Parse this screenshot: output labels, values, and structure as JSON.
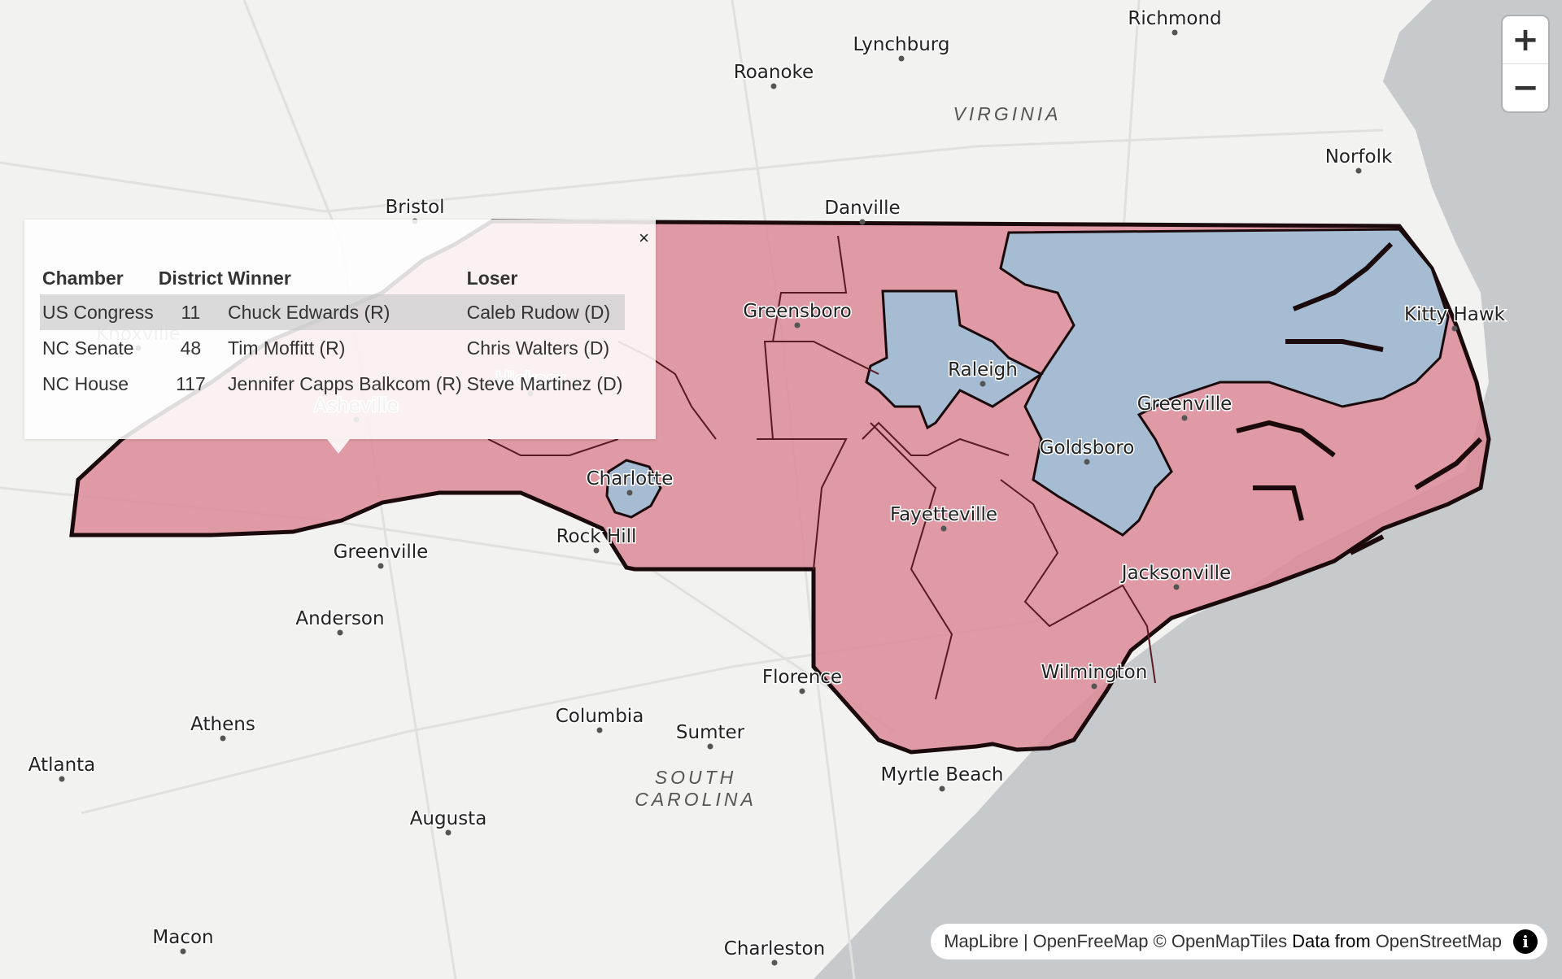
{
  "map": {
    "regions": [
      {
        "name": "VIRGINIA"
      },
      {
        "name": "SOUTH CAROLINA"
      }
    ],
    "cities": [
      "Richmond",
      "Lynchburg",
      "Roanoke",
      "Norfolk",
      "Bristol",
      "Danville",
      "Greensboro",
      "Kitty Hawk",
      "Knoxville",
      "Raleigh",
      "Greenville",
      "Asheville",
      "Goldsboro",
      "Hickory",
      "Charlotte",
      "Fayetteville",
      "Rock Hill",
      "Greenville",
      "Jacksonville",
      "Anderson",
      "Wilmington",
      "Florence",
      "Athens",
      "Columbia",
      "Sumter",
      "Atlanta",
      "Myrtle Beach",
      "Augusta",
      "Macon",
      "Charleston"
    ],
    "colors": {
      "republican": "#dc8b98",
      "democrat": "#9fc0d8",
      "border": "#1a0a0c"
    }
  },
  "controls": {
    "zoom_in": "+",
    "zoom_out": "−"
  },
  "attribution": {
    "maplibre": "MapLibre",
    "sep": "|",
    "openfreemap": "OpenFreeMap",
    "openmaptiles": "© OpenMapTiles",
    "data_from": "Data from",
    "osm": "OpenStreetMap",
    "info_icon": "i"
  },
  "popup": {
    "close": "×",
    "headers": {
      "chamber": "Chamber",
      "district": "District",
      "winner": "Winner",
      "loser": "Loser"
    },
    "rows": [
      {
        "chamber": "US Congress",
        "district": "11",
        "winner": "Chuck Edwards (R)",
        "loser": "Caleb Rudow (D)"
      },
      {
        "chamber": "NC Senate",
        "district": "48",
        "winner": "Tim Moffitt (R)",
        "loser": "Chris Walters (D)"
      },
      {
        "chamber": "NC House",
        "district": "117",
        "winner": "Jennifer Capps Balkcom (R)",
        "loser": "Steve Martinez (D)"
      }
    ]
  }
}
